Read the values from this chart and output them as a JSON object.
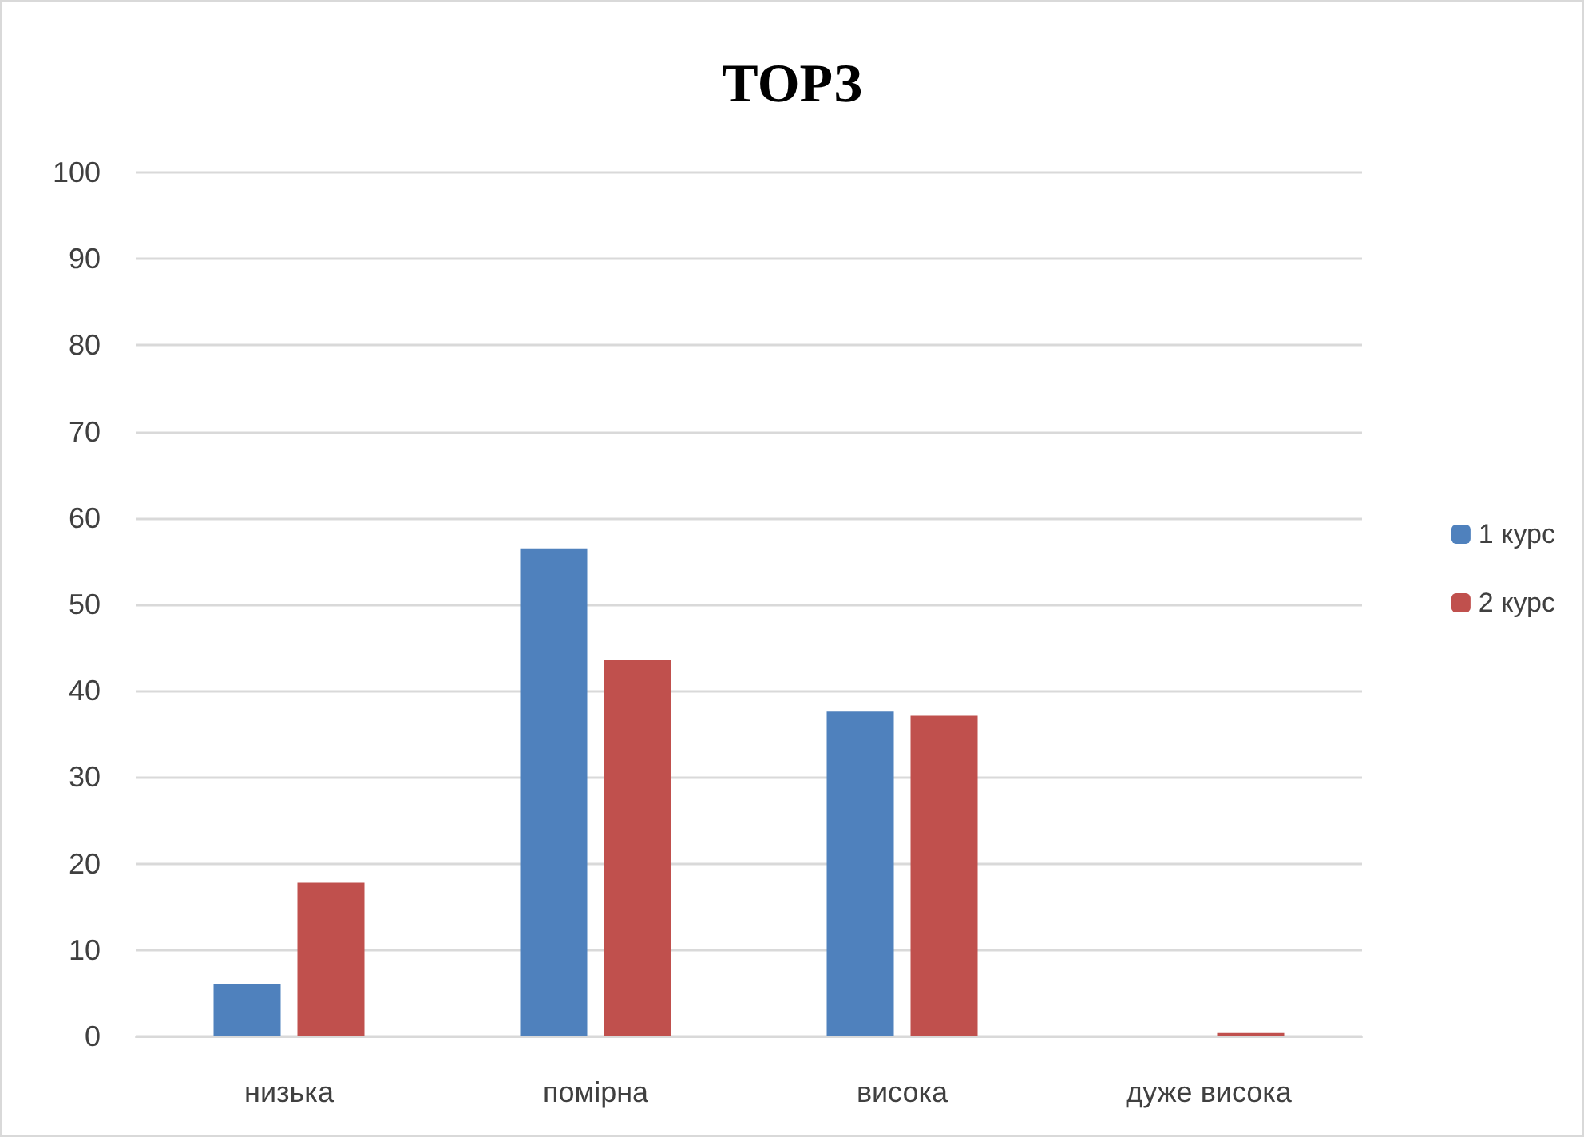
{
  "chart_data": {
    "type": "bar",
    "title": "ТОРЗ",
    "categories": [
      "низька",
      "помірна",
      "висока",
      "дуже висока"
    ],
    "series": [
      {
        "name": "1 курс",
        "color": "#4f81bd",
        "values": [
          6,
          56.5,
          37.6,
          0
        ]
      },
      {
        "name": "2 курс",
        "color": "#c0504d",
        "values": [
          17.8,
          43.6,
          37.1,
          0.4
        ]
      }
    ],
    "ylim": [
      0,
      100
    ],
    "yticks": [
      0,
      10,
      20,
      30,
      40,
      50,
      60,
      70,
      80,
      90,
      100
    ],
    "grid": "y",
    "legend": "right"
  }
}
